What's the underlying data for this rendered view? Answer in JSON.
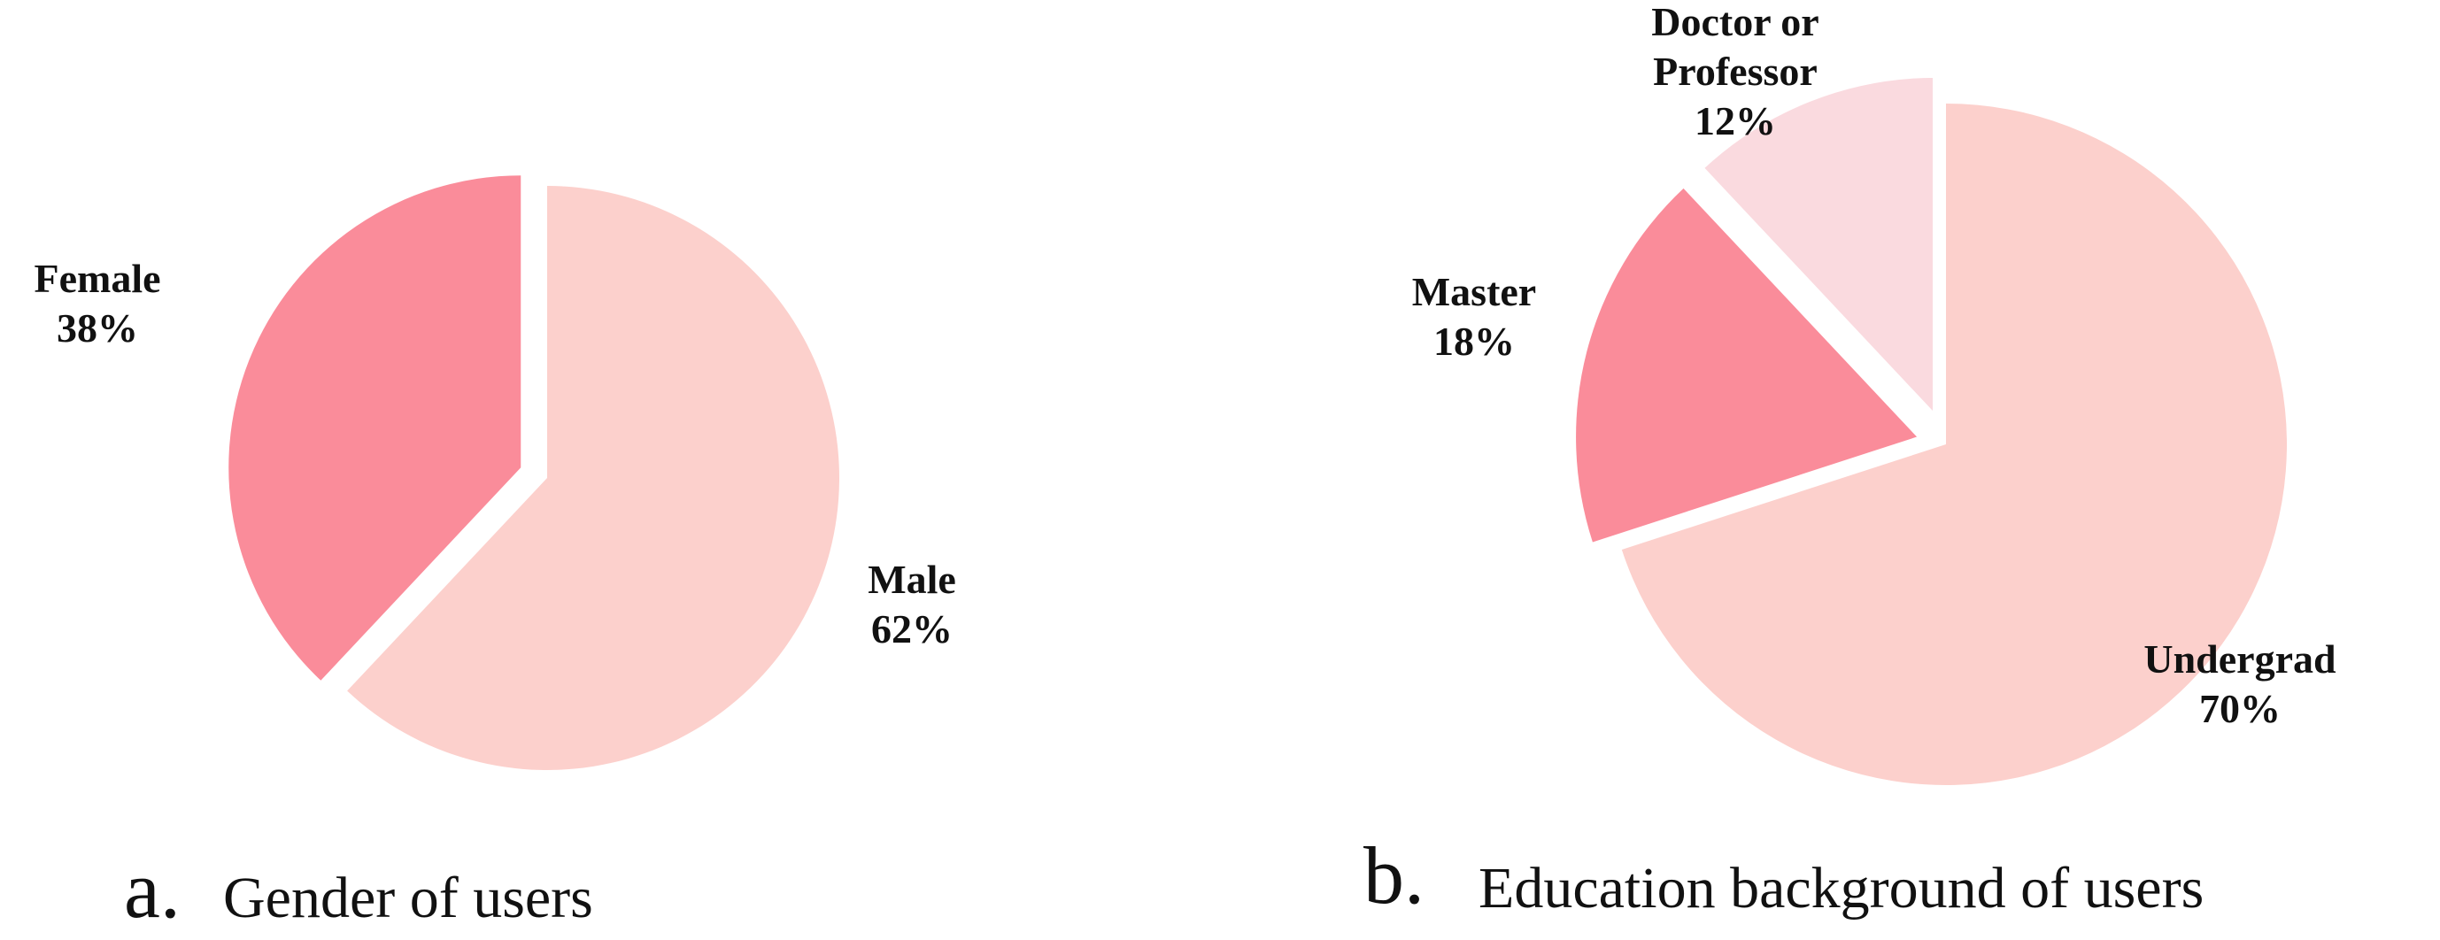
{
  "chart_data": [
    {
      "type": "pie",
      "caption_letter": "a.",
      "caption_text": "Gender of users",
      "start_angle_deg": 0,
      "direction": "clockwise",
      "slices": [
        {
          "name": "Male",
          "label_lines": [
            "Male"
          ],
          "value": 62,
          "value_label": "62%",
          "color": "#fcd0cc",
          "explode": 0
        },
        {
          "name": "Female",
          "label_lines": [
            "Female"
          ],
          "value": 38,
          "value_label": "38%",
          "color": "#fa8c9a",
          "explode": 1
        }
      ]
    },
    {
      "type": "pie",
      "caption_letter": "b.",
      "caption_text": "Education background of users",
      "start_angle_deg": 0,
      "direction": "clockwise",
      "slices": [
        {
          "name": "Undergrad",
          "label_lines": [
            "Undergrad"
          ],
          "value": 70,
          "value_label": "70%",
          "color": "#fcd0cc",
          "explode": 0
        },
        {
          "name": "Master",
          "label_lines": [
            "Master"
          ],
          "value": 18,
          "value_label": "18%",
          "color": "#fa8c9a",
          "explode": 1
        },
        {
          "name": "Doctor or Professor",
          "label_lines": [
            "Doctor or",
            "Professor"
          ],
          "value": 12,
          "value_label": "12%",
          "color": "#fadadf",
          "explode": 1
        }
      ]
    }
  ]
}
